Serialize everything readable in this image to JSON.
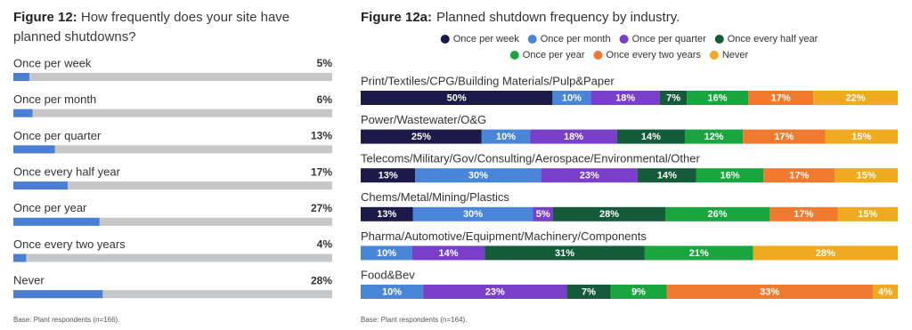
{
  "chart_data": [
    {
      "type": "bar",
      "figure": "Figure 12:",
      "title": "How frequently does your site have planned shutdowns?",
      "categories": [
        "Once per week",
        "Once per month",
        "Once per quarter",
        "Once every half year",
        "Once per year",
        "Once every two years",
        "Never"
      ],
      "values": [
        5,
        6,
        13,
        17,
        27,
        4,
        28
      ],
      "value_labels": [
        "5%",
        "6%",
        "13%",
        "17%",
        "27%",
        "4%",
        "28%"
      ],
      "color": "#4a7fd4",
      "track_color": "#c5c7c9",
      "xlim": [
        0,
        100
      ],
      "footnote": "Base: Plant respondents (n=166)."
    },
    {
      "type": "stacked_bar",
      "figure": "Figure 12a:",
      "title": "Planned shutdown frequency by industry.",
      "categories": [
        "Print/Textiles/CPG/Building Materials/Pulp&Paper",
        "Power/Wastewater/O&G",
        "Telecoms/Military/Gov/Consulting/Aerospace/Environmental/Other",
        "Chems/Metal/Mining/Plastics",
        "Pharma/Automotive/Equipment/Machinery/Components",
        "Food&Bev"
      ],
      "series": [
        {
          "name": "Once per week",
          "color": "#1b1a4a",
          "values": [
            50,
            25,
            13,
            13,
            null,
            null
          ],
          "value_labels": [
            "50%",
            "25%",
            "13%",
            "13%",
            null,
            null
          ]
        },
        {
          "name": "Once per month",
          "color": "#4a86d8",
          "values": [
            10,
            10,
            30,
            30,
            10,
            10
          ],
          "value_labels": [
            "10%",
            "10%",
            "30%",
            "30%",
            "10%",
            "10%"
          ]
        },
        {
          "name": "Once per quarter",
          "color": "#7a3fc8",
          "values": [
            18,
            18,
            23,
            5,
            14,
            23
          ],
          "value_labels": [
            "18%",
            "18%",
            "23%",
            "5%",
            "14%",
            "23%"
          ]
        },
        {
          "name": "Once every half year",
          "color": "#145c39",
          "values": [
            7,
            14,
            14,
            28,
            31,
            7
          ],
          "value_labels": [
            "7%",
            "14%",
            "14%",
            "28%",
            "31%",
            "7%"
          ]
        },
        {
          "name": "Once per year",
          "color": "#1ba53f",
          "values": [
            16,
            12,
            16,
            26,
            21,
            9
          ],
          "value_labels": [
            "16%",
            "12%",
            "16%",
            "26%",
            "21%",
            "9%"
          ]
        },
        {
          "name": "Once every two years",
          "color": "#ef7a30",
          "values": [
            17,
            17,
            17,
            17,
            null,
            33
          ],
          "value_labels": [
            "17%",
            "17%",
            "17%",
            "17%",
            null,
            "33%"
          ]
        },
        {
          "name": "Never",
          "color": "#efaa1f",
          "values": [
            22,
            15,
            15,
            15,
            28,
            4
          ],
          "value_labels": [
            "22%",
            "15%",
            "15%",
            "15%",
            "28%",
            "4%"
          ]
        }
      ],
      "legend": "top",
      "footnote": "Base: Plant respondents (n=164)."
    }
  ]
}
